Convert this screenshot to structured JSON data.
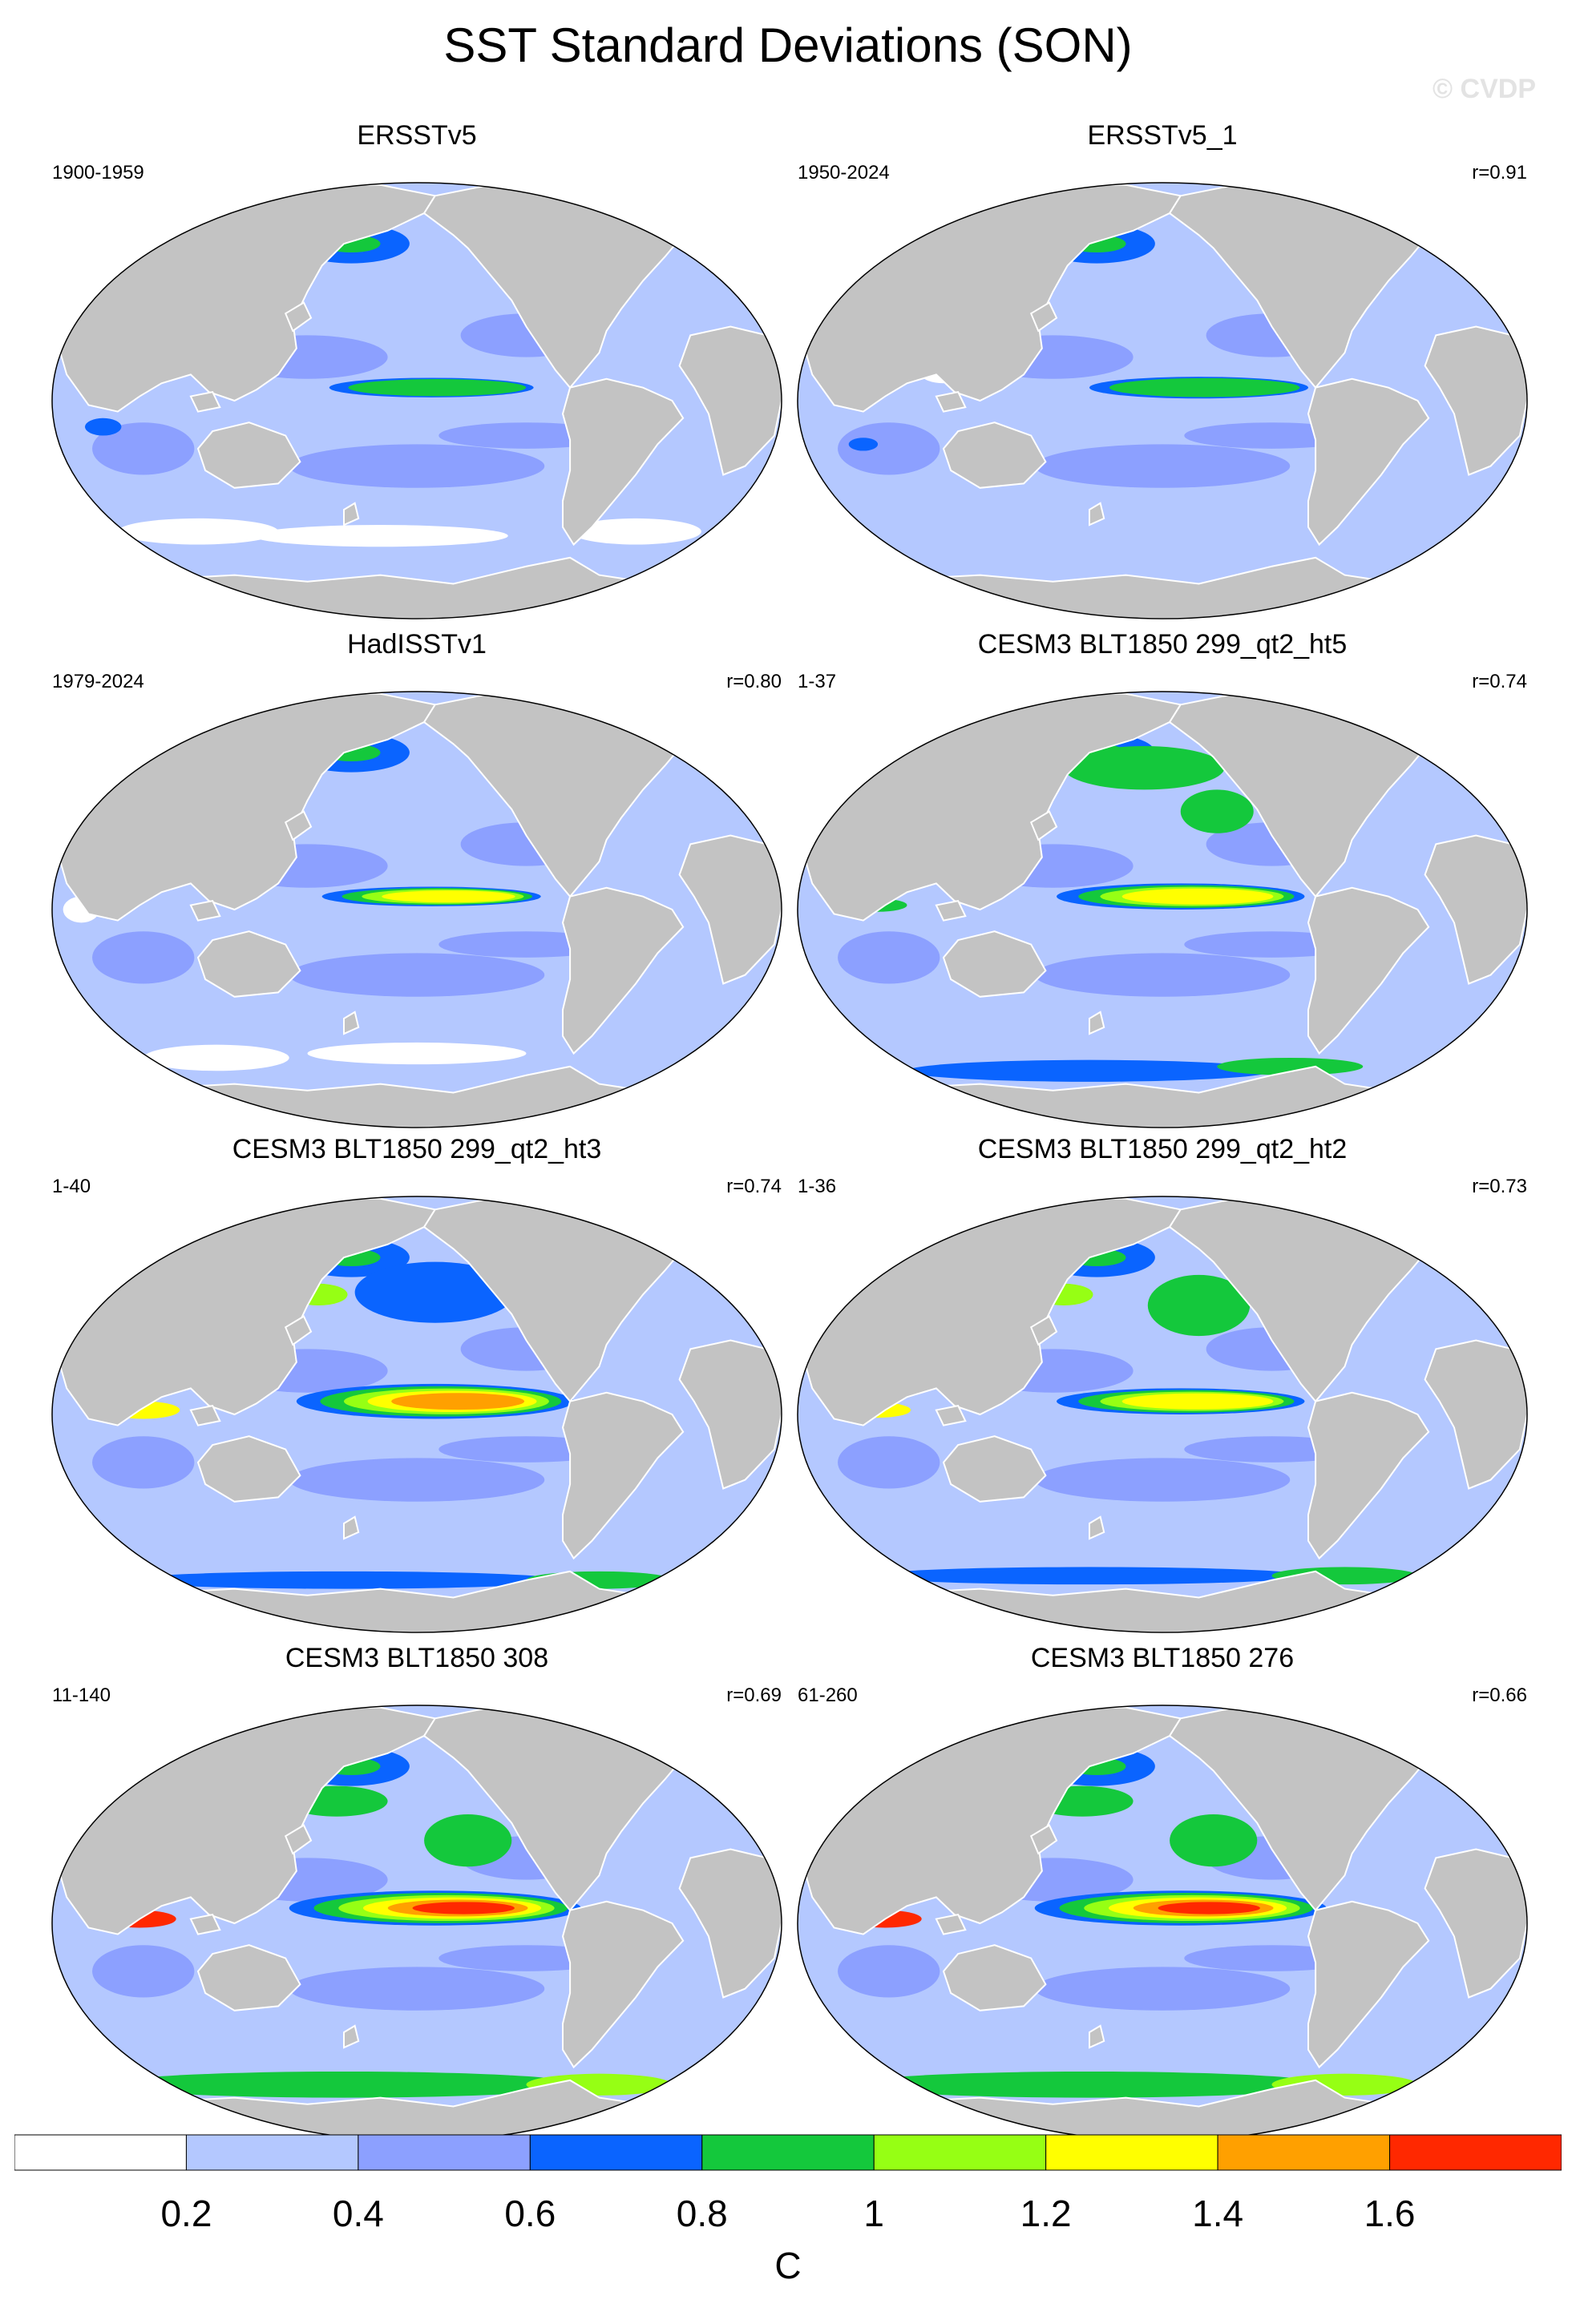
{
  "title": "SST Standard Deviations (SON)",
  "watermark": "© CVDP",
  "panels": [
    {
      "name": "ERSSTv5",
      "period": "1900-1959",
      "r": ""
    },
    {
      "name": "ERSSTv5_1",
      "period": "1950-2024",
      "r": "r=0.91"
    },
    {
      "name": "HadISSTv1",
      "period": "1979-2024",
      "r": "r=0.80"
    },
    {
      "name": "CESM3 BLT1850 299_qt2_ht5",
      "period": "1-37",
      "r": "r=0.74"
    },
    {
      "name": "CESM3 BLT1850 299_qt2_ht3",
      "period": "1-40",
      "r": "r=0.74"
    },
    {
      "name": "CESM3 BLT1850 299_qt2_ht2",
      "period": "1-36",
      "r": "r=0.73"
    },
    {
      "name": "CESM3 BLT1850 308",
      "period": "11-140",
      "r": "r=0.69"
    },
    {
      "name": "CESM3 BLT1850 276",
      "period": "61-260",
      "r": "r=0.66"
    }
  ],
  "colorbar": {
    "colors": [
      "#ffffff",
      "#b4c8ff",
      "#8ca0ff",
      "#0a64ff",
      "#14c83c",
      "#96ff14",
      "#ffff00",
      "#ffa000",
      "#ff2800"
    ],
    "labels": [
      "0.2",
      "0.4",
      "0.6",
      "0.8",
      "1",
      "1.2",
      "1.4",
      "1.6"
    ],
    "unit": "C"
  },
  "colors": {
    "land": "#c3c3c3",
    "ocean_base": "#b4c8ff",
    "coastline": "#ffffff"
  }
}
